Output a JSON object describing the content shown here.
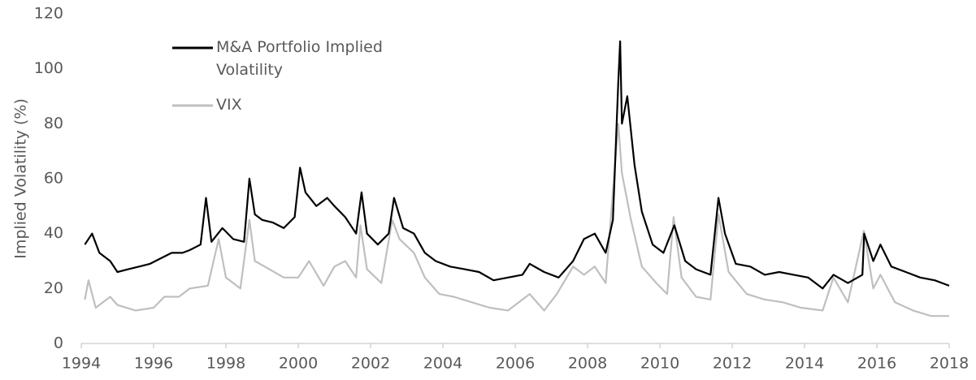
{
  "chart_data": {
    "type": "line",
    "ylabel": "Implied Volatility (%)",
    "xlim": [
      1994,
      2018
    ],
    "xticks": [
      1994,
      1996,
      1998,
      2000,
      2002,
      2004,
      2006,
      2008,
      2010,
      2012,
      2014,
      2016,
      2018
    ],
    "ylim": [
      0,
      120
    ],
    "yticks": [
      0,
      20,
      40,
      60,
      80,
      100,
      120
    ],
    "grid": false,
    "series": [
      {
        "name": "M&A Portfolio Implied Volatility",
        "color": "#000000",
        "x": [
          1994.1,
          1994.3,
          1994.5,
          1994.8,
          1995.0,
          1995.3,
          1995.6,
          1995.9,
          1996.2,
          1996.5,
          1996.8,
          1997.0,
          1997.3,
          1997.45,
          1997.6,
          1997.9,
          1998.2,
          1998.5,
          1998.65,
          1998.8,
          1999.0,
          1999.3,
          1999.6,
          1999.9,
          2000.05,
          2000.2,
          2000.5,
          2000.8,
          2001.0,
          2001.3,
          2001.6,
          2001.75,
          2001.9,
          2002.2,
          2002.5,
          2002.65,
          2002.9,
          2003.2,
          2003.5,
          2003.8,
          2004.2,
          2004.6,
          2005.0,
          2005.4,
          2005.8,
          2006.2,
          2006.4,
          2006.8,
          2007.2,
          2007.6,
          2007.9,
          2008.2,
          2008.5,
          2008.7,
          2008.85,
          2008.9,
          2008.95,
          2009.1,
          2009.3,
          2009.5,
          2009.8,
          2010.1,
          2010.4,
          2010.7,
          2011.0,
          2011.4,
          2011.62,
          2011.8,
          2012.1,
          2012.5,
          2012.9,
          2013.3,
          2013.7,
          2014.1,
          2014.5,
          2014.8,
          2015.2,
          2015.6,
          2015.65,
          2015.9,
          2016.1,
          2016.4,
          2016.8,
          2017.2,
          2017.6,
          2018.0
        ],
        "values": [
          36,
          40,
          33,
          30,
          26,
          27,
          28,
          29,
          31,
          33,
          33,
          34,
          36,
          53,
          37,
          42,
          38,
          37,
          60,
          47,
          45,
          44,
          42,
          46,
          64,
          55,
          50,
          53,
          50,
          46,
          40,
          55,
          40,
          36,
          40,
          53,
          42,
          40,
          33,
          30,
          28,
          27,
          26,
          23,
          24,
          25,
          29,
          26,
          24,
          30,
          38,
          40,
          33,
          45,
          95,
          110,
          80,
          90,
          65,
          48,
          36,
          33,
          43,
          30,
          27,
          25,
          53,
          40,
          29,
          28,
          25,
          26,
          25,
          24,
          20,
          25,
          22,
          25,
          40,
          30,
          36,
          28,
          26,
          24,
          23,
          21
        ]
      },
      {
        "name": "VIX",
        "color": "#bfbfbf",
        "x": [
          1994.1,
          1994.2,
          1994.4,
          1994.8,
          1995.0,
          1995.5,
          1996.0,
          1996.3,
          1996.7,
          1997.0,
          1997.5,
          1997.8,
          1998.0,
          1998.4,
          1998.65,
          1998.8,
          1999.2,
          1999.6,
          2000.0,
          2000.3,
          2000.7,
          2001.0,
          2001.3,
          2001.6,
          2001.72,
          2001.9,
          2002.3,
          2002.6,
          2002.8,
          2003.2,
          2003.5,
          2003.9,
          2004.3,
          2004.8,
          2005.3,
          2005.8,
          2006.4,
          2006.8,
          2007.15,
          2007.6,
          2007.9,
          2008.2,
          2008.5,
          2008.85,
          2008.95,
          2009.2,
          2009.5,
          2009.9,
          2010.2,
          2010.38,
          2010.6,
          2011.0,
          2011.4,
          2011.62,
          2011.9,
          2012.4,
          2012.9,
          2013.4,
          2013.9,
          2014.5,
          2014.8,
          2015.2,
          2015.64,
          2015.9,
          2016.1,
          2016.5,
          2017.0,
          2017.5,
          2018.0
        ],
        "values": [
          16,
          23,
          13,
          17,
          14,
          12,
          13,
          17,
          17,
          20,
          21,
          38,
          24,
          20,
          45,
          30,
          27,
          24,
          24,
          30,
          21,
          28,
          30,
          24,
          43,
          27,
          22,
          45,
          38,
          33,
          24,
          18,
          17,
          15,
          13,
          12,
          18,
          12,
          18,
          28,
          25,
          28,
          22,
          80,
          62,
          45,
          28,
          22,
          18,
          46,
          24,
          17,
          16,
          47,
          26,
          18,
          16,
          15,
          13,
          12,
          24,
          15,
          41,
          20,
          25,
          15,
          12,
          10,
          10
        ]
      }
    ]
  }
}
